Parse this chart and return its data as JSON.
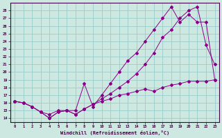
{
  "xlabel": "Windchill (Refroidissement éolien,°C)",
  "bg_color": "#cce8e0",
  "line_color": "#880088",
  "grid_color": "#99cccc",
  "xlim": [
    -0.5,
    23.5
  ],
  "ylim": [
    13.5,
    29
  ],
  "xticks": [
    0,
    1,
    2,
    3,
    4,
    5,
    6,
    7,
    8,
    9,
    10,
    11,
    12,
    13,
    14,
    15,
    16,
    17,
    18,
    19,
    20,
    21,
    22,
    23
  ],
  "yticks": [
    14,
    15,
    16,
    17,
    18,
    19,
    20,
    21,
    22,
    23,
    24,
    25,
    26,
    27,
    28
  ],
  "series1_x": [
    0,
    1,
    2,
    3,
    4,
    5,
    6,
    7,
    8,
    9,
    10,
    11,
    12,
    13,
    14,
    15,
    16,
    17,
    18,
    19,
    20,
    21,
    22,
    23
  ],
  "series1_y": [
    16.2,
    16.0,
    15.5,
    14.8,
    14.0,
    14.8,
    15.0,
    14.5,
    15.2,
    15.8,
    16.5,
    17.2,
    18.0,
    18.8,
    19.8,
    21.0,
    22.5,
    24.5,
    25.5,
    27.0,
    28.0,
    28.5,
    23.5,
    21.0
  ],
  "series2_x": [
    0,
    1,
    2,
    3,
    4,
    5,
    6,
    7,
    8,
    9,
    10,
    11,
    12,
    13,
    14,
    15,
    16,
    17,
    18,
    19,
    20,
    21,
    22,
    23
  ],
  "series2_y": [
    16.2,
    16.0,
    15.5,
    14.8,
    14.5,
    15.0,
    15.0,
    15.0,
    18.5,
    15.5,
    17.0,
    18.5,
    20.0,
    21.5,
    22.5,
    24.0,
    25.5,
    27.0,
    28.5,
    26.5,
    27.5,
    26.5,
    26.5,
    19.0
  ],
  "series3_x": [
    0,
    1,
    2,
    3,
    4,
    5,
    6,
    7,
    8,
    9,
    10,
    11,
    12,
    13,
    14,
    15,
    16,
    17,
    18,
    19,
    20,
    21,
    22,
    23
  ],
  "series3_y": [
    16.2,
    16.0,
    15.5,
    14.8,
    14.0,
    14.8,
    15.0,
    14.5,
    15.2,
    15.8,
    16.2,
    16.5,
    17.0,
    17.2,
    17.5,
    17.8,
    17.5,
    18.0,
    18.3,
    18.5,
    18.8,
    18.8,
    18.8,
    19.0
  ]
}
